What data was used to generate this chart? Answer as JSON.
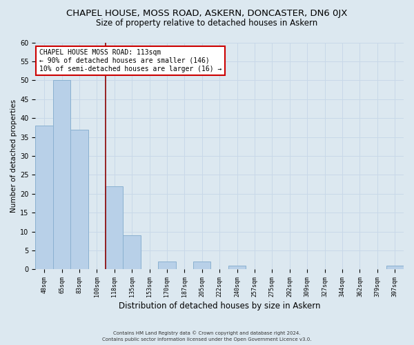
{
  "title": "CHAPEL HOUSE, MOSS ROAD, ASKERN, DONCASTER, DN6 0JX",
  "subtitle": "Size of property relative to detached houses in Askern",
  "xlabel": "Distribution of detached houses by size in Askern",
  "ylabel": "Number of detached properties",
  "footer_line1": "Contains HM Land Registry data © Crown copyright and database right 2024.",
  "footer_line2": "Contains public sector information licensed under the Open Government Licence v3.0.",
  "bar_labels": [
    "48sqm",
    "65sqm",
    "83sqm",
    "100sqm",
    "118sqm",
    "135sqm",
    "153sqm",
    "170sqm",
    "187sqm",
    "205sqm",
    "222sqm",
    "240sqm",
    "257sqm",
    "275sqm",
    "292sqm",
    "309sqm",
    "327sqm",
    "344sqm",
    "362sqm",
    "379sqm",
    "397sqm"
  ],
  "bar_values": [
    38,
    50,
    37,
    0,
    22,
    9,
    0,
    2,
    0,
    2,
    0,
    1,
    0,
    0,
    0,
    0,
    0,
    0,
    0,
    0,
    1
  ],
  "bar_color": "#b8d0e8",
  "bar_edge_color": "#8ab0d0",
  "vline_color": "#8b0000",
  "annotation_text": "CHAPEL HOUSE MOSS ROAD: 113sqm\n← 90% of detached houses are smaller (146)\n10% of semi-detached houses are larger (16) →",
  "annotation_box_facecolor": "white",
  "annotation_box_edgecolor": "#cc0000",
  "ylim": [
    0,
    60
  ],
  "yticks": [
    0,
    5,
    10,
    15,
    20,
    25,
    30,
    35,
    40,
    45,
    50,
    55,
    60
  ],
  "grid_color": "#c8d8e8",
  "background_color": "#dce8f0",
  "title_fontsize": 9.5,
  "subtitle_fontsize": 8.5,
  "xlabel_fontsize": 8.5,
  "ylabel_fontsize": 7.5,
  "annotation_fontsize": 7,
  "tick_fontsize": 6,
  "footer_fontsize": 5
}
